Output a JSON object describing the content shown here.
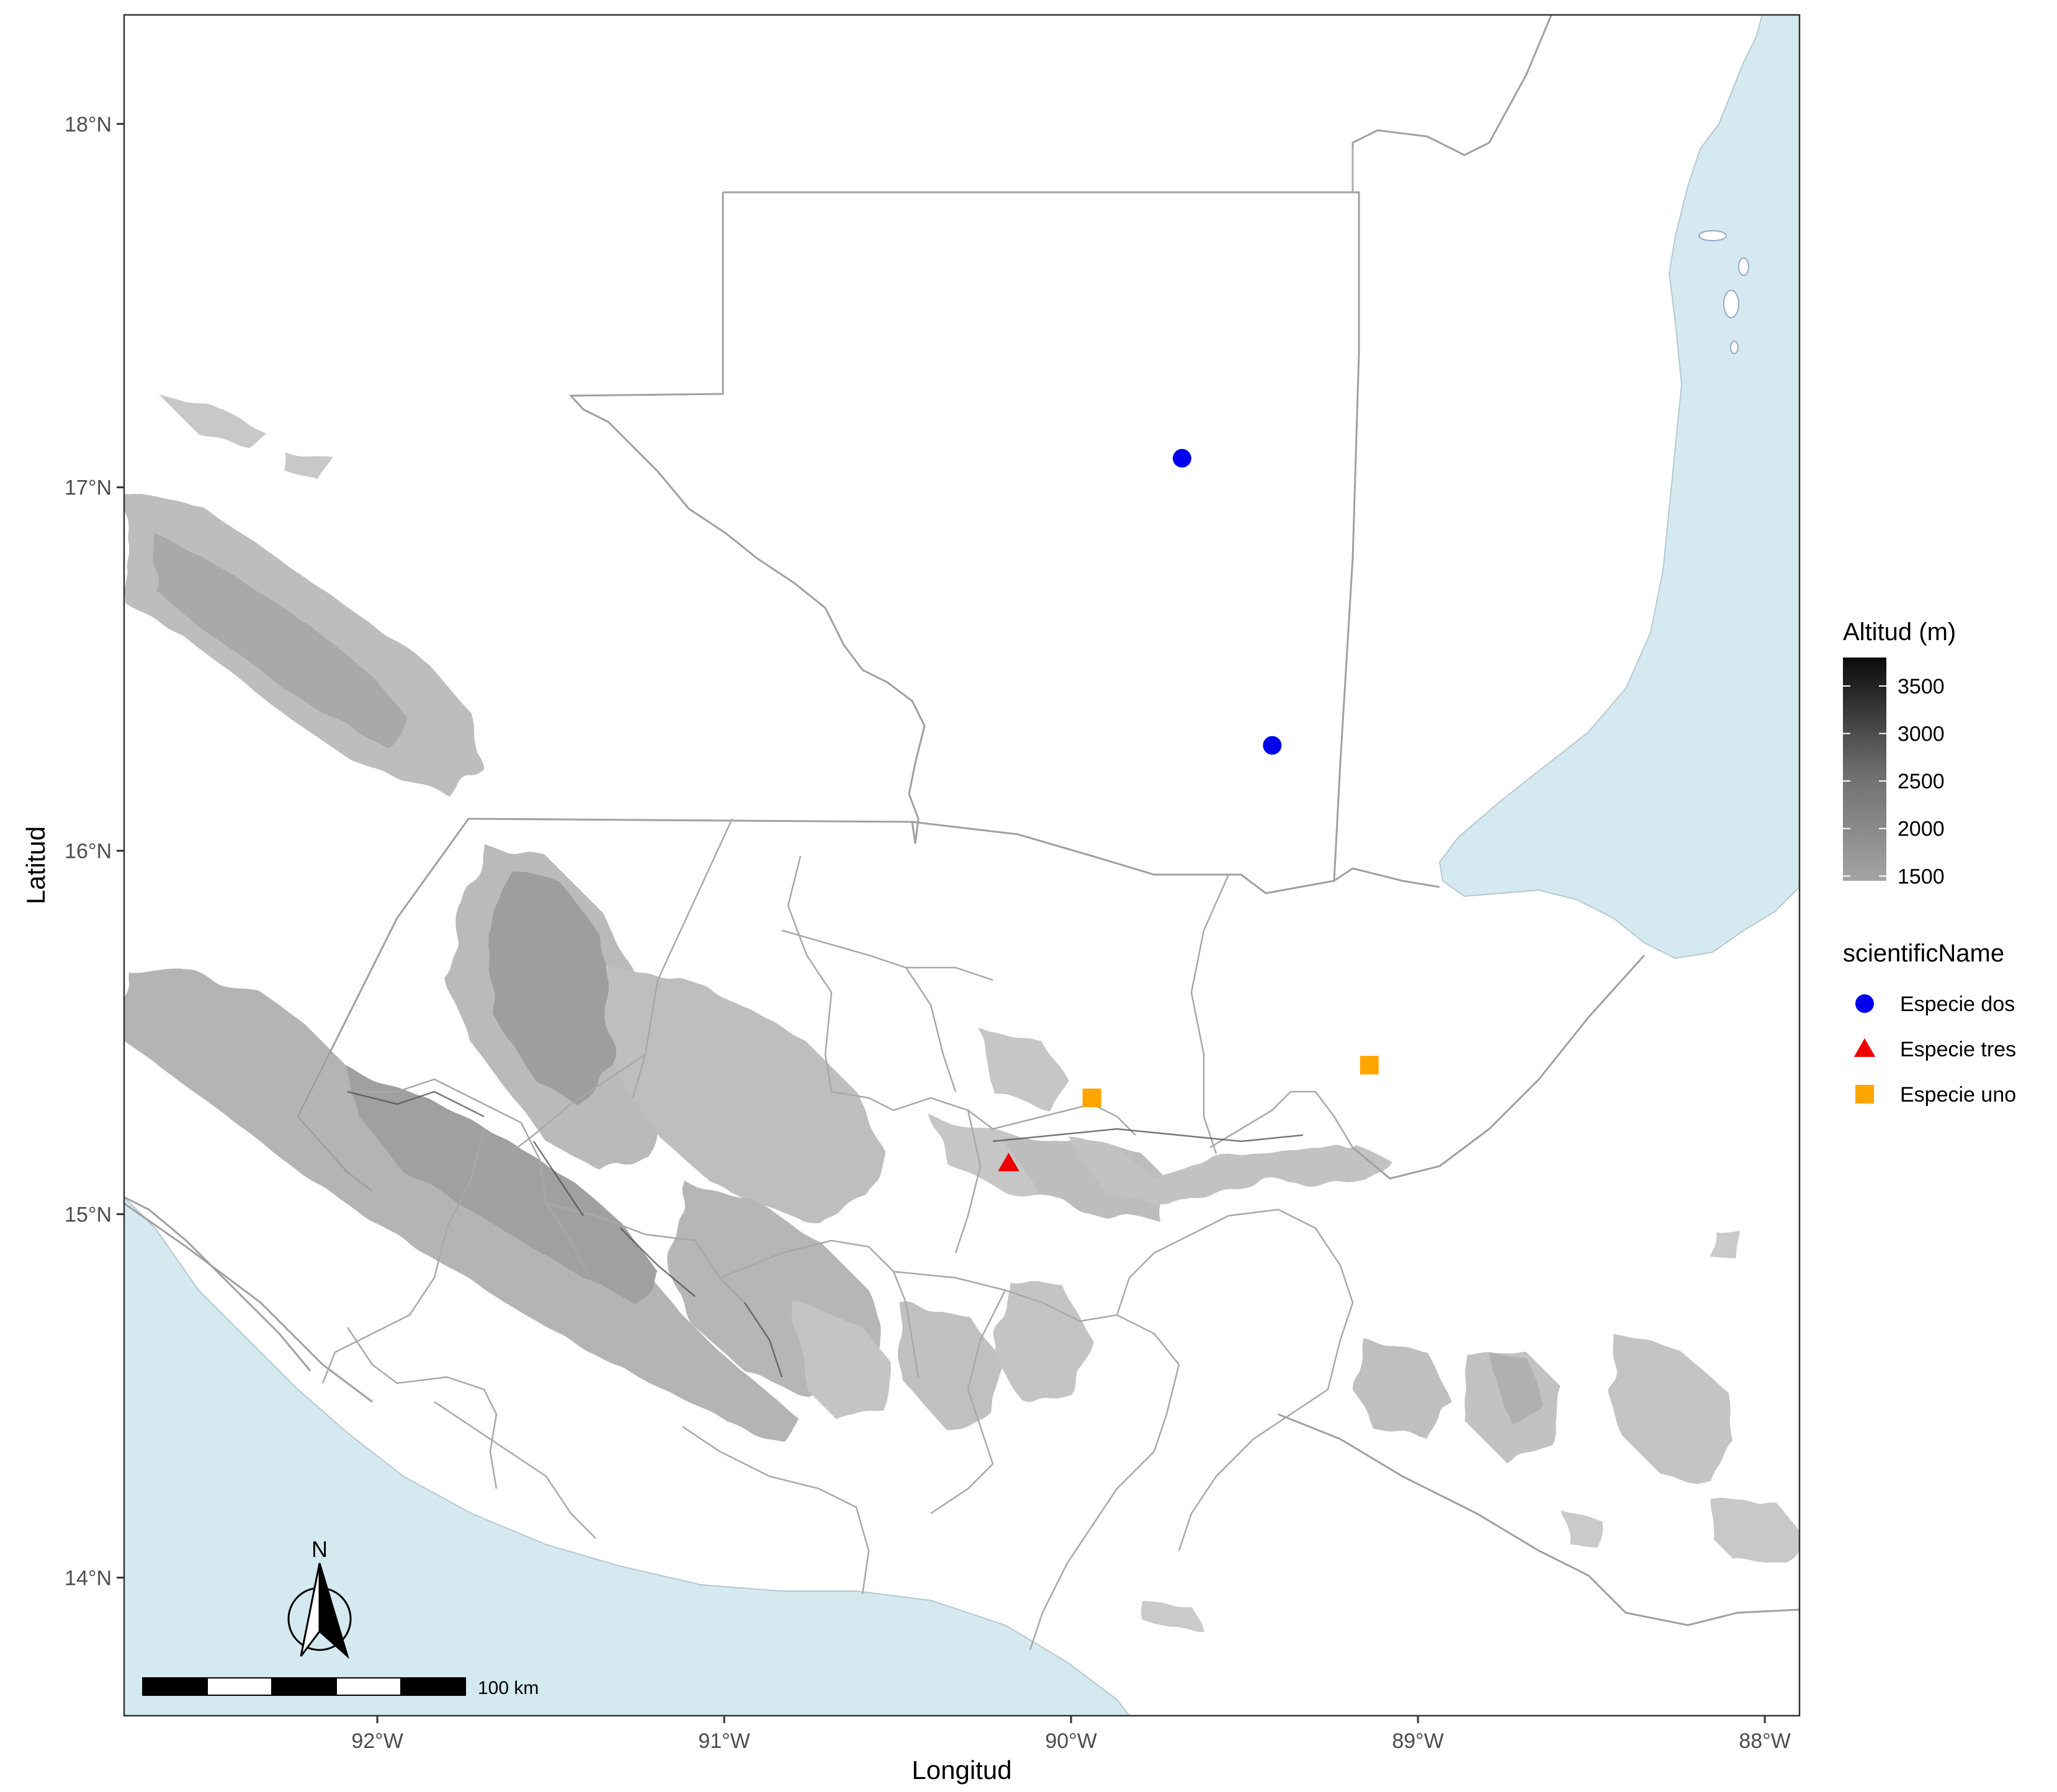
{
  "map": {
    "x_axis_title": "Longitud",
    "y_axis_title": "Latitud",
    "x_ticks": [
      {
        "value": -92,
        "label": "92°W"
      },
      {
        "value": -91,
        "label": "91°W"
      },
      {
        "value": -90,
        "label": "90°W"
      },
      {
        "value": -89,
        "label": "89°W"
      },
      {
        "value": -88,
        "label": "88°W"
      }
    ],
    "y_ticks": [
      {
        "value": 14,
        "label": "14°N"
      },
      {
        "value": 15,
        "label": "15°N"
      },
      {
        "value": 16,
        "label": "16°N"
      },
      {
        "value": 17,
        "label": "17°N"
      },
      {
        "value": 18,
        "label": "18°N"
      }
    ],
    "lon_range": [
      -92.73,
      -87.9
    ],
    "lat_range": [
      13.62,
      18.3
    ],
    "colors": {
      "sea": "#d4e9f0",
      "border": "#9e9e9e",
      "dept_border": "#a8a8a8",
      "especie_dos": "#0000ee",
      "especie_tres": "#ee0000",
      "especie_uno": "#ffa500"
    }
  },
  "chart_data": {
    "type": "scatter",
    "series": [
      {
        "name": "Especie dos",
        "shape": "circle",
        "color": "#0000ee",
        "points": [
          {
            "lon": -89.68,
            "lat": 17.08
          },
          {
            "lon": -89.42,
            "lat": 16.29
          }
        ]
      },
      {
        "name": "Especie tres",
        "shape": "triangle",
        "color": "#ee0000",
        "points": [
          {
            "lon": -90.18,
            "lat": 15.14
          }
        ]
      },
      {
        "name": "Especie uno",
        "shape": "square",
        "color": "#ffa500",
        "points": [
          {
            "lon": -89.94,
            "lat": 15.32
          },
          {
            "lon": -89.14,
            "lat": 15.41
          }
        ]
      }
    ],
    "xlabel": "Longitud",
    "ylabel": "Latitud",
    "xlim": [
      -92.73,
      -87.9
    ],
    "ylim": [
      13.62,
      18.3
    ]
  },
  "legend": {
    "altitude": {
      "title": "Altitud (m)",
      "min": 1450,
      "max": 3800,
      "ticks": [
        3500,
        3000,
        2500,
        2000,
        1500
      ],
      "tick_labels": [
        "3500",
        "3000",
        "2500",
        "2000",
        "1500"
      ]
    },
    "species": {
      "title": "scientificName",
      "items": [
        {
          "label": "Especie dos",
          "shape": "circle",
          "color": "#0000ee"
        },
        {
          "label": "Especie tres",
          "shape": "triangle",
          "color": "#ee0000"
        },
        {
          "label": "Especie uno",
          "shape": "square",
          "color": "#ffa500"
        }
      ]
    }
  },
  "north_arrow": {
    "label": "N"
  },
  "scale_bar": {
    "label": "100 km"
  }
}
